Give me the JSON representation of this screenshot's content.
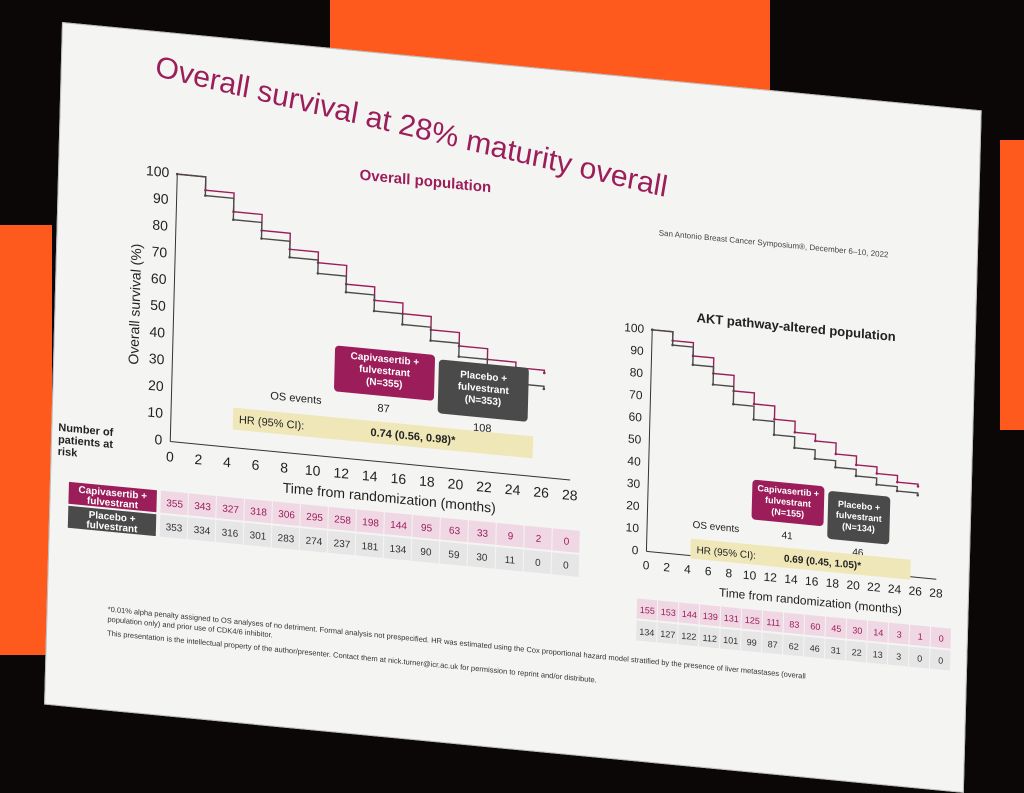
{
  "slide": {
    "title": "Overall survival at 28% maturity overall",
    "symposium": "San Antonio Breast Cancer Symposium®, December 6–10, 2022",
    "footnote_1": "*0.01% alpha penalty assigned to OS analyses of no detriment. Formal analysis not prespecified. HR was estimated using the Cox proportional hazard model stratified by the presence of liver metastases (overall",
    "footnote_2": "population only) and prior use of CDK4/6 inhibitor.",
    "footnote_3": "This presentation is the intellectual property of the author/presenter. Contact them at nick.turner@icr.ac.uk for permission to reprint and/or distribute."
  },
  "colors": {
    "capivasertib": "#9b1d5a",
    "placebo": "#4a4a4a",
    "hr_box": "#efe7b8",
    "risk_pink": "#f0d7e4",
    "risk_gray": "#e6e6e6"
  },
  "chart_data": [
    {
      "type": "line",
      "title": "Overall population",
      "xlabel": "Time from randomization (months)",
      "ylabel": "Overall survival (%)",
      "xlim": [
        0,
        28
      ],
      "ylim": [
        0,
        100
      ],
      "x_ticks": [
        0,
        2,
        4,
        6,
        8,
        10,
        12,
        14,
        16,
        18,
        20,
        22,
        24,
        26,
        28
      ],
      "y_ticks": [
        0,
        10,
        20,
        30,
        40,
        50,
        60,
        70,
        80,
        90,
        100
      ],
      "series": [
        {
          "name": "Capivasertib + fulvestrant",
          "x": [
            0,
            2,
            4,
            6,
            8,
            10,
            12,
            14,
            16,
            18,
            20,
            22,
            24,
            26
          ],
          "values": [
            100,
            95,
            88,
            82,
            76,
            72,
            65,
            60,
            56,
            51,
            46,
            42,
            40,
            39
          ]
        },
        {
          "name": "Placebo + fulvestrant",
          "x": [
            0,
            2,
            4,
            6,
            8,
            10,
            12,
            14,
            16,
            18,
            20,
            22,
            24,
            26
          ],
          "values": [
            100,
            93,
            85,
            79,
            73,
            68,
            62,
            56,
            52,
            47,
            42,
            37,
            34,
            33
          ]
        }
      ],
      "legend": {
        "capivasertib": "Capivasertib + fulvestrant (N=355)",
        "placebo": "Placebo + fulvestrant (N=353)"
      },
      "os_events_label": "OS events",
      "os_events": [
        "87",
        "108"
      ],
      "hr_label": "HR (95% CI):",
      "hr_value": "0.74 (0.56, 0.98)*",
      "risk_header": "Number of patients at risk",
      "risk_row_labels": [
        "Capivasertib + fulvestrant",
        "Placebo + fulvestrant"
      ],
      "risk_capi": [
        "355",
        "343",
        "327",
        "318",
        "306",
        "295",
        "258",
        "198",
        "144",
        "95",
        "63",
        "33",
        "9",
        "2",
        "0"
      ],
      "risk_placebo": [
        "353",
        "334",
        "316",
        "301",
        "283",
        "274",
        "237",
        "181",
        "134",
        "90",
        "59",
        "30",
        "11",
        "0",
        "0"
      ]
    },
    {
      "type": "line",
      "title": "AKT pathway-altered population",
      "xlabel": "Time from randomization (months)",
      "ylabel": "",
      "xlim": [
        0,
        28
      ],
      "ylim": [
        0,
        100
      ],
      "x_ticks": [
        0,
        2,
        4,
        6,
        8,
        10,
        12,
        14,
        16,
        18,
        20,
        22,
        24,
        26,
        28
      ],
      "y_ticks": [
        0,
        10,
        20,
        30,
        40,
        50,
        60,
        70,
        80,
        90,
        100
      ],
      "series": [
        {
          "name": "Capivasertib + fulvestrant",
          "x": [
            0,
            2,
            4,
            6,
            8,
            10,
            12,
            14,
            16,
            18,
            20,
            22,
            24,
            26
          ],
          "values": [
            100,
            96,
            90,
            83,
            76,
            71,
            65,
            60,
            57,
            52,
            48,
            45,
            42,
            41
          ]
        },
        {
          "name": "Placebo + fulvestrant",
          "x": [
            0,
            2,
            4,
            6,
            8,
            10,
            12,
            14,
            16,
            18,
            20,
            22,
            24,
            26
          ],
          "values": [
            100,
            94,
            86,
            78,
            70,
            64,
            58,
            53,
            49,
            46,
            43,
            40,
            38,
            37
          ]
        }
      ],
      "legend": {
        "capivasertib": "Capivasertib + fulvestrant (N=155)",
        "placebo": "Placebo + fulvestrant (N=134)"
      },
      "os_events_label": "OS events",
      "os_events": [
        "41",
        "46"
      ],
      "hr_label": "HR (95% CI):",
      "hr_value": "0.69 (0.45, 1.05)*",
      "risk_capi": [
        "155",
        "153",
        "144",
        "139",
        "131",
        "125",
        "111",
        "83",
        "60",
        "45",
        "30",
        "14",
        "3",
        "1",
        "0"
      ],
      "risk_placebo": [
        "134",
        "127",
        "122",
        "112",
        "101",
        "99",
        "87",
        "62",
        "46",
        "31",
        "22",
        "13",
        "3",
        "0",
        "0"
      ]
    }
  ]
}
